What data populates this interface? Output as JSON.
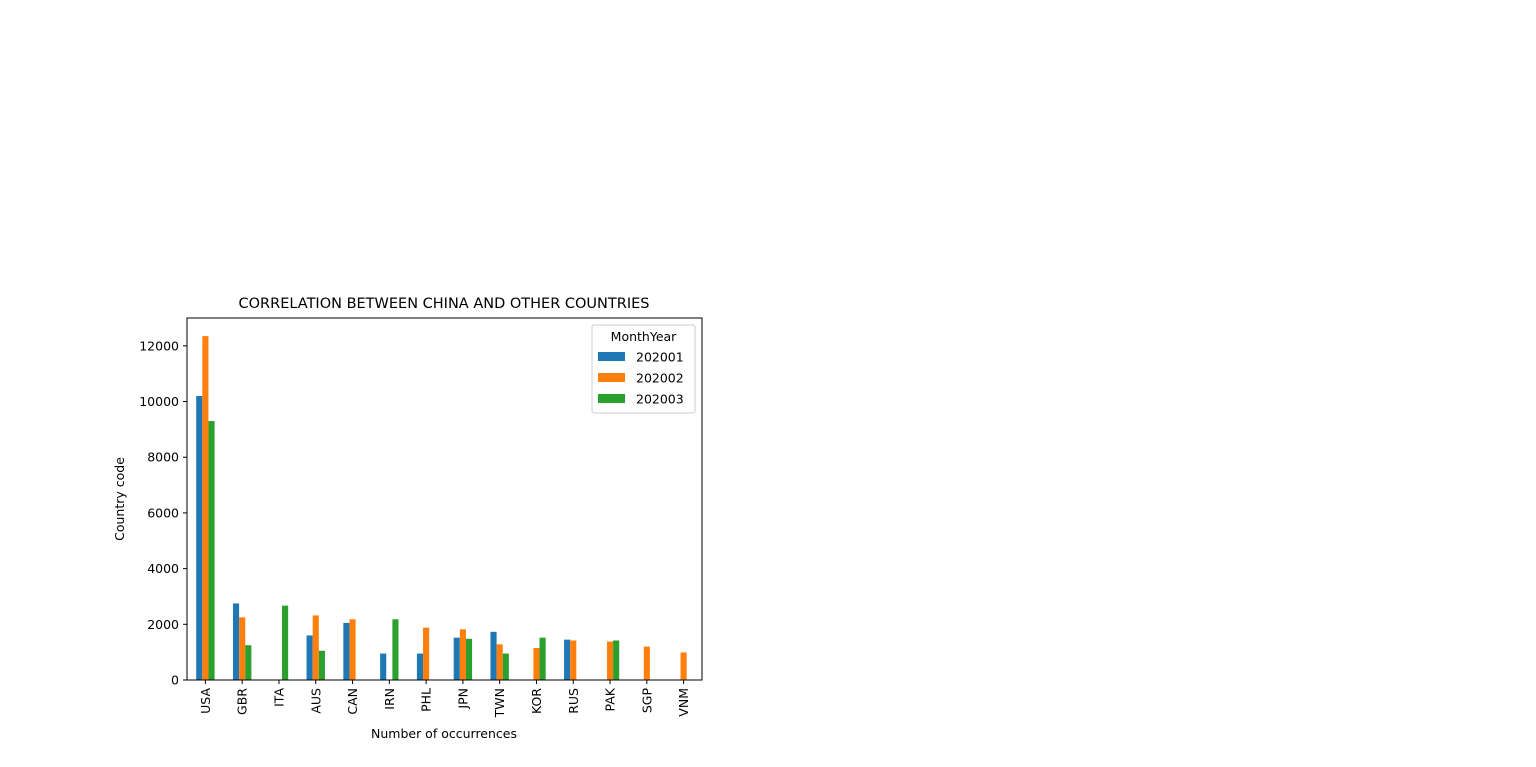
{
  "chart_data": {
    "type": "bar",
    "title": "CORRELATION BETWEEN CHINA AND OTHER COUNTRIES",
    "xlabel": "Number of occurrences",
    "ylabel": "Country code",
    "categories": [
      "USA",
      "GBR",
      "ITA",
      "AUS",
      "CAN",
      "IRN",
      "PHL",
      "JPN",
      "TWN",
      "KOR",
      "RUS",
      "PAK",
      "SGP",
      "VNM"
    ],
    "series": [
      {
        "name": "202001",
        "color": "#1f77b4",
        "values": [
          10200,
          2750,
          null,
          1600,
          2050,
          950,
          950,
          1520,
          1730,
          null,
          1450,
          null,
          null,
          null
        ]
      },
      {
        "name": "202002",
        "color": "#ff7f0e",
        "values": [
          12350,
          2250,
          null,
          2320,
          2180,
          null,
          1880,
          1820,
          1280,
          1150,
          1420,
          1380,
          1200,
          990
        ]
      },
      {
        "name": "202003",
        "color": "#2ca02c",
        "values": [
          9300,
          1250,
          2670,
          1050,
          null,
          2180,
          null,
          1480,
          950,
          1520,
          null,
          1420,
          null,
          null
        ]
      }
    ],
    "ylim": [
      0,
      13000
    ],
    "yticks": [
      0,
      2000,
      4000,
      6000,
      8000,
      10000,
      12000
    ],
    "legend": {
      "title": "MonthYear",
      "position": "top-right"
    },
    "grid": false
  }
}
